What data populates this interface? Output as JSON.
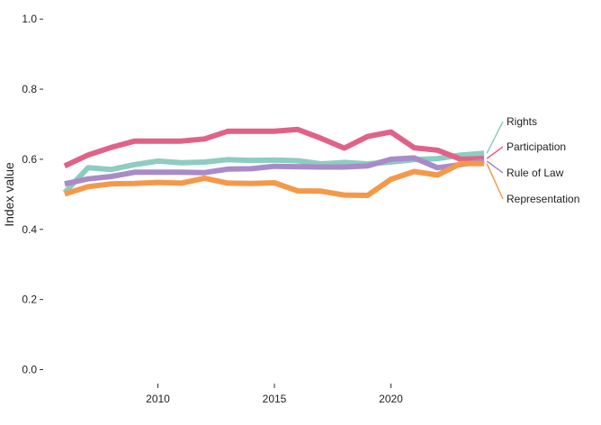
{
  "chart_data": {
    "type": "line",
    "ylabel": "Index value",
    "xlabel": "",
    "ylim": [
      0,
      1
    ],
    "yticks": [
      "0.0",
      "0.2",
      "0.4",
      "0.6",
      "0.8",
      "1.0"
    ],
    "xticks": [
      "2010",
      "2015",
      "2020"
    ],
    "grid": false,
    "legend": "direct-labels-right",
    "x": [
      2006,
      2007,
      2008,
      2009,
      2010,
      2011,
      2012,
      2013,
      2014,
      2015,
      2016,
      2017,
      2018,
      2019,
      2020,
      2021,
      2022,
      2023,
      2024
    ],
    "series": [
      {
        "name": "Rights",
        "color": "#8dcdc1",
        "values": [
          0.505,
          0.576,
          0.571,
          0.585,
          0.595,
          0.59,
          0.592,
          0.599,
          0.597,
          0.598,
          0.596,
          0.587,
          0.591,
          0.587,
          0.592,
          0.599,
          0.602,
          0.612,
          0.617
        ]
      },
      {
        "name": "Participation",
        "color": "#e06288",
        "values": [
          0.581,
          0.612,
          0.634,
          0.652,
          0.652,
          0.652,
          0.658,
          0.68,
          0.68,
          0.68,
          0.685,
          0.66,
          0.632,
          0.665,
          0.678,
          0.633,
          0.626,
          0.6,
          0.602
        ]
      },
      {
        "name": "Rule of Law",
        "color": "#a88bc8",
        "values": [
          0.53,
          0.544,
          0.551,
          0.563,
          0.563,
          0.563,
          0.562,
          0.572,
          0.573,
          0.58,
          0.579,
          0.578,
          0.578,
          0.581,
          0.6,
          0.604,
          0.576,
          0.585,
          0.595
        ]
      },
      {
        "name": "Representation",
        "color": "#f4994a",
        "values": [
          0.501,
          0.522,
          0.53,
          0.531,
          0.534,
          0.532,
          0.546,
          0.532,
          0.531,
          0.533,
          0.51,
          0.509,
          0.498,
          0.497,
          0.543,
          0.565,
          0.555,
          0.588,
          0.588
        ]
      }
    ]
  }
}
